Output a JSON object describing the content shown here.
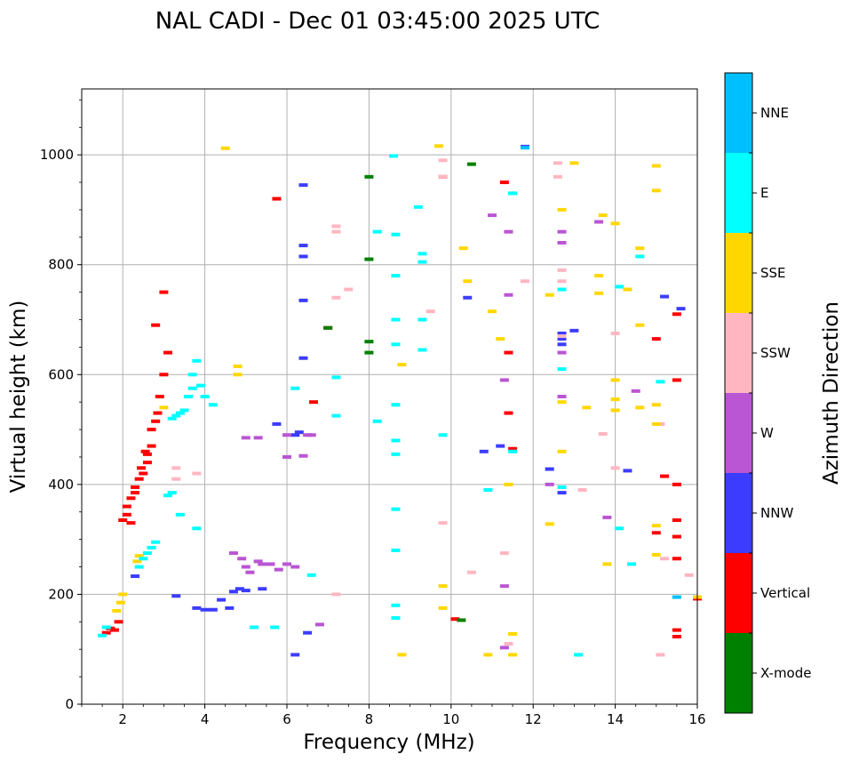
{
  "chart_data": {
    "type": "scatter",
    "title": "NAL CADI - Dec 01 03:45:00 2025 UTC",
    "xlabel": "Frequency (MHz)",
    "ylabel": "Virtual height (km)",
    "xlim": [
      1,
      16
    ],
    "ylim": [
      0,
      1120
    ],
    "xticks": [
      2,
      4,
      6,
      8,
      10,
      12,
      14,
      16
    ],
    "yticks": [
      0,
      200,
      400,
      600,
      800,
      1000
    ],
    "grid": true,
    "colorbar": {
      "label": "Azimuth Direction",
      "position": "right",
      "categories": [
        {
          "name": "NNE",
          "color": "#00bfff"
        },
        {
          "name": "E",
          "color": "#00ffff"
        },
        {
          "name": "SSE",
          "color": "#ffd700"
        },
        {
          "name": "SSW",
          "color": "#ffb6c1"
        },
        {
          "name": "W",
          "color": "#ba55d3"
        },
        {
          "name": "NNW",
          "color": "#3c3cff"
        },
        {
          "name": "Vertical",
          "color": "#ff0000"
        },
        {
          "name": "X-mode",
          "color": "#008000"
        }
      ]
    },
    "series": [
      {
        "name": "Vertical",
        "points": [
          [
            1.6,
            130
          ],
          [
            1.7,
            138
          ],
          [
            1.8,
            135
          ],
          [
            1.9,
            150
          ],
          [
            2.0,
            335
          ],
          [
            2.1,
            345
          ],
          [
            2.1,
            360
          ],
          [
            2.2,
            375
          ],
          [
            2.3,
            385
          ],
          [
            2.3,
            395
          ],
          [
            2.4,
            410
          ],
          [
            2.5,
            420
          ],
          [
            2.6,
            440
          ],
          [
            2.6,
            455
          ],
          [
            2.7,
            470
          ],
          [
            2.7,
            500
          ],
          [
            2.8,
            515
          ],
          [
            2.85,
            530
          ],
          [
            2.9,
            560
          ],
          [
            3.0,
            600
          ],
          [
            3.1,
            640
          ],
          [
            3.0,
            750
          ],
          [
            2.8,
            690
          ],
          [
            2.55,
            460
          ],
          [
            2.45,
            430
          ],
          [
            2.2,
            330
          ],
          [
            5.75,
            920
          ],
          [
            6.65,
            550
          ],
          [
            7.0,
            685
          ],
          [
            9.8,
            960
          ],
          [
            10.1,
            155
          ],
          [
            11.3,
            950
          ],
          [
            11.4,
            640
          ],
          [
            11.4,
            530
          ],
          [
            11.5,
            465
          ],
          [
            15.0,
            665
          ],
          [
            15.0,
            312
          ],
          [
            15.2,
            415
          ],
          [
            15.5,
            710
          ],
          [
            15.5,
            590
          ],
          [
            15.5,
            400
          ],
          [
            15.5,
            335
          ],
          [
            15.5,
            305
          ],
          [
            15.5,
            265
          ],
          [
            15.5,
            135
          ],
          [
            15.5,
            123
          ],
          [
            16.0,
            192
          ]
        ]
      },
      {
        "name": "X-mode",
        "points": [
          [
            8.0,
            960
          ],
          [
            8.0,
            810
          ],
          [
            8.0,
            660
          ],
          [
            8.0,
            640
          ],
          [
            7.0,
            685
          ],
          [
            10.25,
            153
          ],
          [
            10.5,
            983
          ]
        ]
      },
      {
        "name": "NNW",
        "points": [
          [
            2.3,
            233
          ],
          [
            3.3,
            197
          ],
          [
            3.8,
            175
          ],
          [
            4.0,
            172
          ],
          [
            4.2,
            172
          ],
          [
            4.4,
            190
          ],
          [
            4.6,
            175
          ],
          [
            4.7,
            205
          ],
          [
            4.85,
            210
          ],
          [
            5.0,
            207
          ],
          [
            5.4,
            210
          ],
          [
            5.75,
            510
          ],
          [
            6.2,
            490
          ],
          [
            6.3,
            495
          ],
          [
            6.4,
            945
          ],
          [
            6.4,
            835
          ],
          [
            6.4,
            815
          ],
          [
            6.4,
            735
          ],
          [
            6.4,
            630
          ],
          [
            6.5,
            130
          ],
          [
            6.2,
            90
          ],
          [
            10.4,
            740
          ],
          [
            10.8,
            460
          ],
          [
            11.2,
            470
          ],
          [
            11.8,
            1015
          ],
          [
            12.4,
            428
          ],
          [
            12.7,
            675
          ],
          [
            12.7,
            665
          ],
          [
            12.7,
            655
          ],
          [
            12.7,
            385
          ],
          [
            13.0,
            680
          ],
          [
            14.3,
            425
          ],
          [
            15.2,
            742
          ],
          [
            15.6,
            720
          ]
        ]
      },
      {
        "name": "W",
        "points": [
          [
            4.7,
            275
          ],
          [
            4.9,
            265
          ],
          [
            5.0,
            250
          ],
          [
            5.1,
            240
          ],
          [
            5.3,
            260
          ],
          [
            5.4,
            255
          ],
          [
            5.6,
            255
          ],
          [
            5.8,
            245
          ],
          [
            6.0,
            255
          ],
          [
            6.2,
            250
          ],
          [
            5.0,
            485
          ],
          [
            5.3,
            485
          ],
          [
            6.0,
            490
          ],
          [
            6.5,
            490
          ],
          [
            6.6,
            490
          ],
          [
            6.8,
            145
          ],
          [
            6.0,
            450
          ],
          [
            6.4,
            452
          ],
          [
            11.3,
            590
          ],
          [
            11.4,
            860
          ],
          [
            11.4,
            745
          ],
          [
            11.3,
            215
          ],
          [
            11.3,
            103
          ],
          [
            12.4,
            400
          ],
          [
            12.7,
            860
          ],
          [
            12.7,
            840
          ],
          [
            12.7,
            640
          ],
          [
            12.7,
            560
          ],
          [
            13.6,
            878
          ],
          [
            13.8,
            340
          ],
          [
            14.5,
            570
          ],
          [
            11.0,
            890
          ]
        ]
      },
      {
        "name": "SSW",
        "points": [
          [
            3.3,
            430
          ],
          [
            3.3,
            410
          ],
          [
            3.8,
            420
          ],
          [
            7.2,
            870
          ],
          [
            7.2,
            860
          ],
          [
            7.2,
            740
          ],
          [
            7.2,
            200
          ],
          [
            7.5,
            755
          ],
          [
            9.5,
            715
          ],
          [
            9.8,
            990
          ],
          [
            9.8,
            960
          ],
          [
            9.8,
            330
          ],
          [
            10.5,
            240
          ],
          [
            11.3,
            275
          ],
          [
            11.4,
            110
          ],
          [
            11.8,
            770
          ],
          [
            12.6,
            985
          ],
          [
            12.6,
            960
          ],
          [
            12.7,
            790
          ],
          [
            12.7,
            770
          ],
          [
            12.7,
            670
          ],
          [
            13.2,
            390
          ],
          [
            13.7,
            492
          ],
          [
            14.0,
            675
          ],
          [
            14.0,
            430
          ],
          [
            15.1,
            510
          ],
          [
            15.2,
            265
          ],
          [
            15.1,
            90
          ],
          [
            15.8,
            235
          ]
        ]
      },
      {
        "name": "SSE",
        "points": [
          [
            1.85,
            170
          ],
          [
            1.95,
            185
          ],
          [
            2.0,
            200
          ],
          [
            2.35,
            260
          ],
          [
            2.4,
            270
          ],
          [
            3.0,
            540
          ],
          [
            4.5,
            1012
          ],
          [
            4.8,
            615
          ],
          [
            4.8,
            600
          ],
          [
            8.8,
            618
          ],
          [
            8.8,
            90
          ],
          [
            9.7,
            1016
          ],
          [
            9.8,
            215
          ],
          [
            9.8,
            175
          ],
          [
            10.3,
            830
          ],
          [
            10.4,
            770
          ],
          [
            10.9,
            90
          ],
          [
            11.0,
            715
          ],
          [
            11.2,
            665
          ],
          [
            11.4,
            400
          ],
          [
            11.5,
            90
          ],
          [
            11.5,
            128
          ],
          [
            12.4,
            745
          ],
          [
            12.4,
            328
          ],
          [
            12.7,
            900
          ],
          [
            12.7,
            550
          ],
          [
            12.7,
            460
          ],
          [
            13.0,
            985
          ],
          [
            13.3,
            540
          ],
          [
            13.7,
            890
          ],
          [
            13.6,
            780
          ],
          [
            13.6,
            748
          ],
          [
            13.8,
            255
          ],
          [
            14.0,
            875
          ],
          [
            14.0,
            590
          ],
          [
            14.0,
            555
          ],
          [
            14.0,
            535
          ],
          [
            14.3,
            755
          ],
          [
            14.6,
            830
          ],
          [
            14.6,
            690
          ],
          [
            14.6,
            540
          ],
          [
            15.0,
            980
          ],
          [
            15.0,
            935
          ],
          [
            15.0,
            545
          ],
          [
            15.0,
            510
          ],
          [
            15.0,
            325
          ],
          [
            15.0,
            272
          ],
          [
            16.0,
            195
          ]
        ]
      },
      {
        "name": "E",
        "points": [
          [
            1.5,
            125
          ],
          [
            1.6,
            140
          ],
          [
            2.4,
            250
          ],
          [
            2.5,
            265
          ],
          [
            2.6,
            275
          ],
          [
            2.7,
            285
          ],
          [
            2.8,
            295
          ],
          [
            3.2,
            520
          ],
          [
            3.3,
            525
          ],
          [
            3.4,
            530
          ],
          [
            3.5,
            535
          ],
          [
            3.6,
            560
          ],
          [
            3.7,
            575
          ],
          [
            3.7,
            600
          ],
          [
            3.8,
            625
          ],
          [
            3.9,
            580
          ],
          [
            4.0,
            560
          ],
          [
            4.2,
            545
          ],
          [
            3.1,
            380
          ],
          [
            3.2,
            385
          ],
          [
            3.4,
            345
          ],
          [
            3.8,
            320
          ],
          [
            5.2,
            140
          ],
          [
            5.7,
            140
          ],
          [
            6.2,
            575
          ],
          [
            6.6,
            235
          ],
          [
            7.2,
            595
          ],
          [
            7.2,
            525
          ],
          [
            8.2,
            860
          ],
          [
            8.2,
            515
          ],
          [
            8.6,
            998
          ],
          [
            8.65,
            855
          ],
          [
            8.65,
            780
          ],
          [
            8.65,
            700
          ],
          [
            8.65,
            655
          ],
          [
            8.65,
            545
          ],
          [
            8.65,
            480
          ],
          [
            8.65,
            455
          ],
          [
            8.65,
            355
          ],
          [
            8.65,
            280
          ],
          [
            8.65,
            180
          ],
          [
            8.65,
            157
          ],
          [
            9.2,
            905
          ],
          [
            9.3,
            820
          ],
          [
            9.3,
            805
          ],
          [
            9.3,
            700
          ],
          [
            9.3,
            645
          ],
          [
            9.8,
            490
          ],
          [
            10.9,
            390
          ],
          [
            11.5,
            930
          ],
          [
            11.5,
            460
          ],
          [
            12.7,
            755
          ],
          [
            12.7,
            610
          ],
          [
            12.7,
            395
          ],
          [
            13.1,
            90
          ],
          [
            14.1,
            760
          ],
          [
            14.4,
            255
          ],
          [
            14.1,
            320
          ],
          [
            14.6,
            815
          ],
          [
            15.1,
            587
          ]
        ]
      },
      {
        "name": "NNE",
        "points": [
          [
            11.8,
            1013
          ],
          [
            15.5,
            195
          ]
        ]
      }
    ]
  }
}
